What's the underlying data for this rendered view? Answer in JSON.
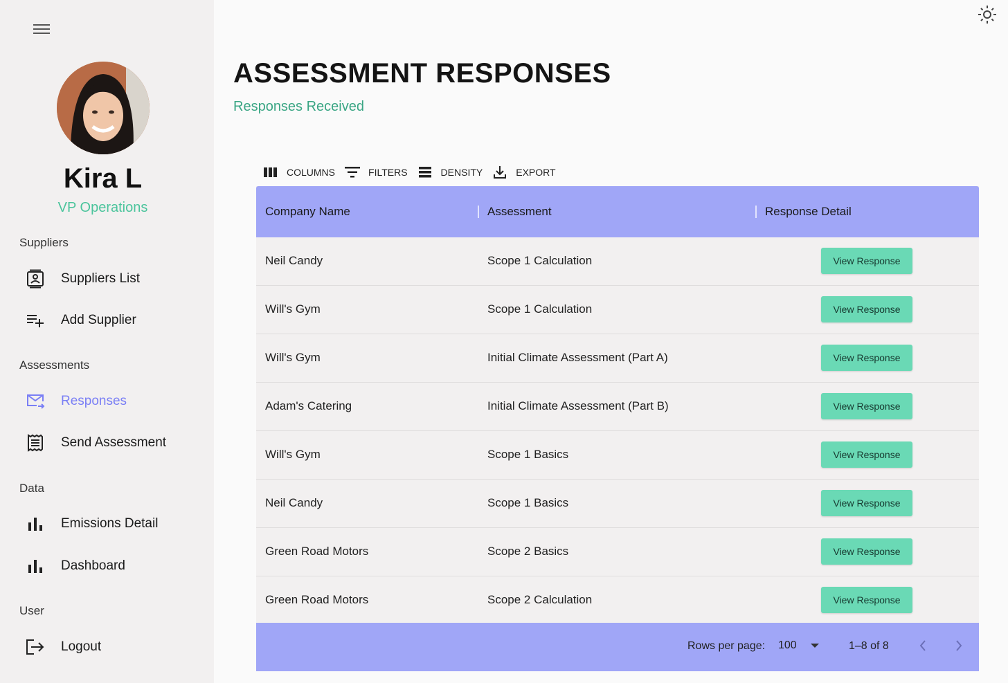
{
  "sidebar": {
    "user": {
      "name": "Kira L",
      "role": "VP Operations"
    },
    "sections": {
      "suppliers": "Suppliers",
      "assessments": "Assessments",
      "data": "Data",
      "user": "User"
    },
    "items": {
      "suppliers_list": "Suppliers List",
      "add_supplier": "Add Supplier",
      "responses": "Responses",
      "send_assessment": "Send Assessment",
      "emissions_detail": "Emissions Detail",
      "dashboard": "Dashboard",
      "logout": "Logout"
    }
  },
  "page": {
    "title": "ASSESSMENT RESPONSES",
    "subtitle": "Responses Received"
  },
  "toolbar": {
    "columns": "COLUMNS",
    "filters": "FILTERS",
    "density": "DENSITY",
    "export": "EXPORT"
  },
  "table": {
    "headers": [
      "Company Name",
      "Assessment",
      "Response Detail"
    ],
    "rows": [
      {
        "company": "Neil Candy",
        "assessment": "Scope 1 Calculation",
        "action": "View Response"
      },
      {
        "company": "Will's Gym",
        "assessment": "Scope 1 Calculation",
        "action": "View Response"
      },
      {
        "company": "Will's Gym",
        "assessment": "Initial Climate Assessment (Part A)",
        "action": "View Response"
      },
      {
        "company": "Adam's Catering",
        "assessment": "Initial Climate Assessment (Part B)",
        "action": "View Response"
      },
      {
        "company": "Will's Gym",
        "assessment": "Scope 1 Basics",
        "action": "View Response"
      },
      {
        "company": "Neil Candy",
        "assessment": "Scope 1 Basics",
        "action": "View Response"
      },
      {
        "company": "Green Road Motors",
        "assessment": "Scope 2 Basics",
        "action": "View Response"
      },
      {
        "company": "Green Road Motors",
        "assessment": "Scope 2 Calculation",
        "action": "View Response"
      }
    ]
  },
  "pagination": {
    "rows_per_page_label": "Rows per page:",
    "rows_per_page_value": "100",
    "range": "1–8 of 8"
  },
  "colors": {
    "accent_green": "#4bc49c",
    "header_purple": "#a0a6f7",
    "button_green": "#6ad9b5",
    "active_nav": "#7a7ff5"
  },
  "icons": [
    "menu-icon",
    "theme-sun-icon",
    "contact-card-icon",
    "playlist-add-icon",
    "mail-forward-icon",
    "receipt-icon",
    "bar-chart-icon",
    "logout-icon",
    "view-column-icon",
    "filter-list-icon",
    "density-icon",
    "download-icon",
    "chevron-left-icon",
    "chevron-right-icon"
  ]
}
